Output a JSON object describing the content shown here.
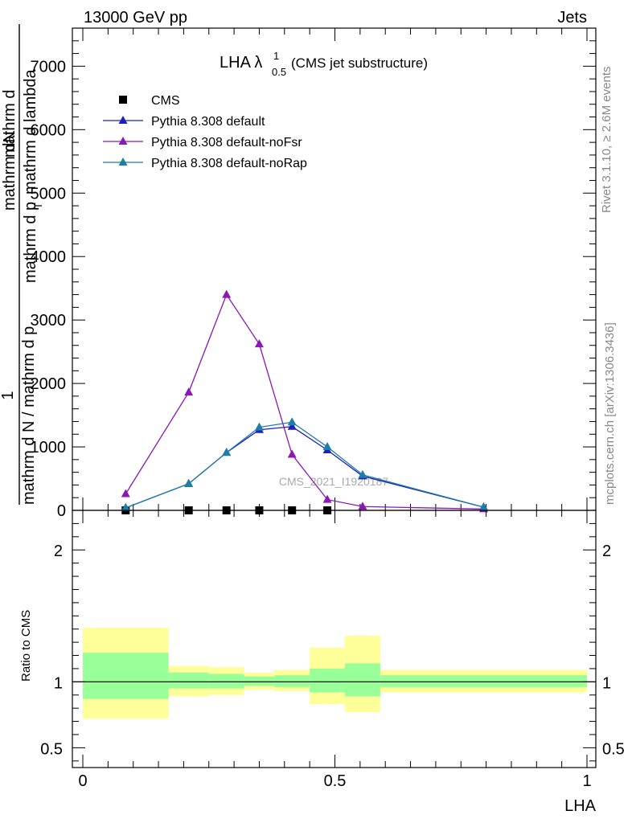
{
  "header": {
    "left": "13000 GeV pp",
    "right": "Jets"
  },
  "side_text": {
    "rivet": "Rivet 3.1.10, ≥ 2.6M events",
    "mcplots": "mcplots.cern.ch [arXiv:1306.3436]"
  },
  "watermark": "CMS_2021_I1920187",
  "chart_data": [
    {
      "type": "line",
      "title_main": "LHA λ",
      "title_sup": "1",
      "title_sub": "0.5",
      "title_suffix": " (CMS jet substructure)",
      "ylabel_1": "1",
      "ylabel_num": "mathrm dN",
      "ylabel_den": "mathrm d N / mathrm d p",
      "ylabel_den_sub": "T",
      "ylabel_num2": "mathrm d",
      "ylabel_num2b": "N",
      "ylabel_den2": "mathrm d p",
      "ylabel_den2_sub": "T",
      "ylabel_den2b": " mathrm d lambda",
      "ylim": [
        0,
        7600
      ],
      "yticks": [
        0,
        1000,
        2000,
        3000,
        4000,
        5000,
        6000,
        7000
      ],
      "ytick_labels": [
        "0",
        "1000",
        "2000",
        "3000",
        "4000",
        "5000",
        "6000",
        "7000"
      ],
      "xlim": [
        -0.02,
        1.0
      ],
      "legend_position": "top-left",
      "series": [
        {
          "name": "CMS",
          "marker": "square",
          "color": "#000000",
          "x": [
            0.085,
            0.21,
            0.285,
            0.35,
            0.415,
            0.485
          ],
          "y": [
            0,
            0,
            0,
            0,
            0,
            0
          ]
        },
        {
          "name": "Pythia 8.308 default",
          "marker": "triangle",
          "color": "#1f1fbf",
          "x": [
            0.085,
            0.21,
            0.285,
            0.35,
            0.415,
            0.485,
            0.555,
            0.795
          ],
          "y": [
            40,
            420,
            910,
            1270,
            1320,
            950,
            540,
            50
          ]
        },
        {
          "name": "Pythia 8.308 default-noFsr",
          "marker": "triangle",
          "color": "#8a18b4",
          "x": [
            0.085,
            0.21,
            0.285,
            0.35,
            0.415,
            0.485,
            0.555,
            0.795
          ],
          "y": [
            260,
            1860,
            3400,
            2620,
            880,
            170,
            60,
            20
          ]
        },
        {
          "name": "Pythia 8.308 default-noRap",
          "marker": "triangle",
          "color": "#1d7ea8",
          "x": [
            0.085,
            0.21,
            0.285,
            0.35,
            0.415,
            0.485,
            0.555,
            0.795
          ],
          "y": [
            40,
            420,
            910,
            1310,
            1390,
            1000,
            560,
            50
          ]
        }
      ]
    },
    {
      "type": "area",
      "ylabel": "Ratio to CMS",
      "xlabel": "LHA",
      "ylim": [
        0.35,
        2.3
      ],
      "yticks": [
        0.5,
        1,
        2
      ],
      "ytick_labels": [
        "0.5",
        "1",
        "2"
      ],
      "xlim": [
        -0.02,
        1.0
      ],
      "xticks": [
        0,
        0.5,
        1
      ],
      "xtick_labels": [
        "0",
        "0.5",
        "1"
      ],
      "reference_line": 1,
      "bands": {
        "outer_color": "#ffff99",
        "inner_color": "#99ff99",
        "bins": [
          {
            "x0": 0.0,
            "x1": 0.17,
            "outer": [
              0.72,
              1.41
            ],
            "inner": [
              0.87,
              1.22
            ]
          },
          {
            "x0": 0.17,
            "x1": 0.25,
            "outer": [
              0.89,
              1.12
            ],
            "inner": [
              0.95,
              1.07
            ]
          },
          {
            "x0": 0.25,
            "x1": 0.32,
            "outer": [
              0.9,
              1.11
            ],
            "inner": [
              0.95,
              1.06
            ]
          },
          {
            "x0": 0.32,
            "x1": 0.38,
            "outer": [
              0.94,
              1.07
            ],
            "inner": [
              0.97,
              1.04
            ]
          },
          {
            "x0": 0.38,
            "x1": 0.45,
            "outer": [
              0.93,
              1.09
            ],
            "inner": [
              0.96,
              1.05
            ]
          },
          {
            "x0": 0.45,
            "x1": 0.52,
            "outer": [
              0.83,
              1.26
            ],
            "inner": [
              0.92,
              1.1
            ]
          },
          {
            "x0": 0.52,
            "x1": 0.59,
            "outer": [
              0.77,
              1.35
            ],
            "inner": [
              0.89,
              1.14
            ]
          },
          {
            "x0": 0.59,
            "x1": 1.0,
            "outer": [
              0.92,
              1.09
            ],
            "inner": [
              0.96,
              1.05
            ]
          }
        ]
      }
    }
  ]
}
